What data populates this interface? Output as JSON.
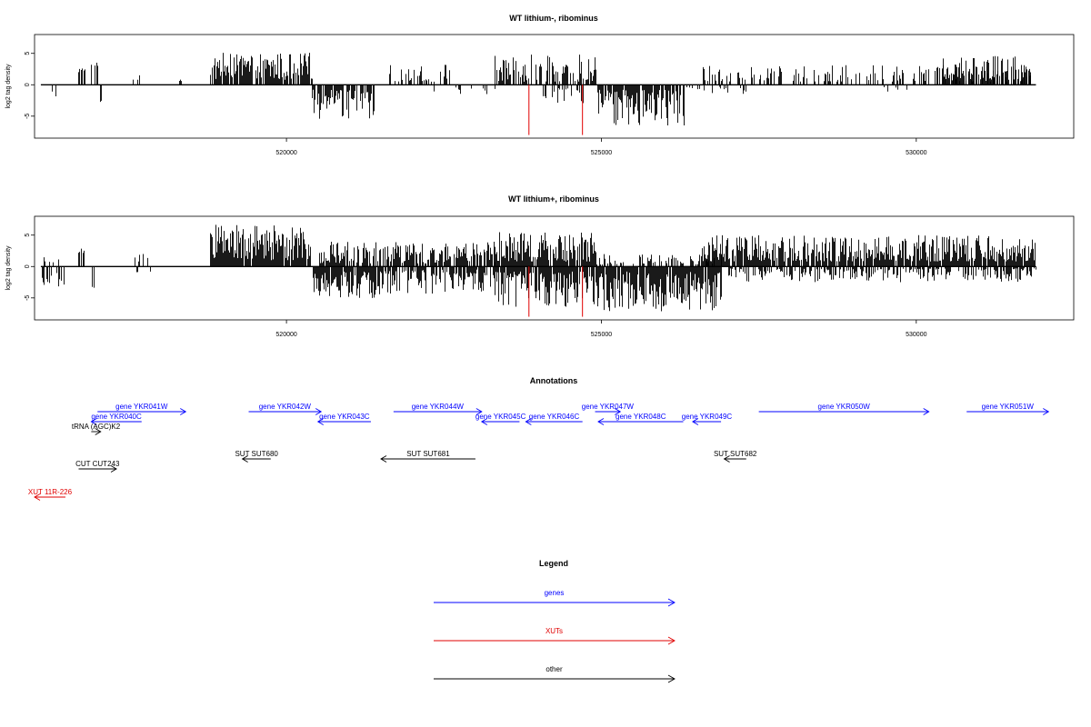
{
  "chart_data": [
    {
      "type": "bar",
      "title": "WT lithium-, ribominus",
      "ylabel": "log2 tag density",
      "ylim": [
        -8.5,
        8
      ],
      "xlim": [
        516000,
        532500
      ],
      "y_ticks": [
        -5,
        0,
        5
      ],
      "x_ticks": [
        520000,
        525000,
        530000
      ],
      "x_tick_labels": [
        "520000",
        "525000",
        "530000"
      ],
      "y_tick_labels": [
        "-5",
        "0",
        "5"
      ],
      "highlight_lines": [
        {
          "x": 523850,
          "y": -8.0,
          "color": "#e00000"
        },
        {
          "x": 524700,
          "y": -8.0,
          "color": "#e00000"
        }
      ],
      "series_segments": [
        {
          "range": [
            516100,
            516350
          ],
          "sign": -1,
          "min": 0.6,
          "max": 2.2,
          "density": 0.12
        },
        {
          "range": [
            516700,
            516800
          ],
          "sign": 1,
          "min": 2.0,
          "max": 2.8,
          "density": 0.5
        },
        {
          "range": [
            516900,
            517000
          ],
          "sign": 1,
          "min": 3.0,
          "max": 4.0,
          "density": 0.5
        },
        {
          "range": [
            517000,
            517050
          ],
          "sign": -1,
          "min": 2.5,
          "max": 3.2,
          "density": 0.5
        },
        {
          "range": [
            517500,
            517700
          ],
          "sign": 1,
          "min": 0.8,
          "max": 1.8,
          "density": 0.2
        },
        {
          "range": [
            518300,
            518350
          ],
          "sign": 1,
          "min": 0.6,
          "max": 1.0,
          "density": 0.5
        },
        {
          "range": [
            518780,
            520410
          ],
          "sign": 1,
          "min": 0.8,
          "max": 5.2,
          "density": 0.85
        },
        {
          "range": [
            520410,
            521380
          ],
          "sign": -1,
          "min": 0.8,
          "max": 5.5,
          "density": 0.85
        },
        {
          "range": [
            521600,
            522600
          ],
          "sign": 1,
          "min": 0.4,
          "max": 3.2,
          "density": 0.45
        },
        {
          "range": [
            522300,
            523300
          ],
          "sign": -1,
          "min": 0.3,
          "max": 1.6,
          "density": 0.15
        },
        {
          "range": [
            523300,
            524900
          ],
          "sign": 1,
          "min": 0.5,
          "max": 4.8,
          "density": 0.65
        },
        {
          "range": [
            524000,
            524700
          ],
          "sign": -1,
          "min": 0.5,
          "max": 3.0,
          "density": 0.4
        },
        {
          "range": [
            524900,
            526300
          ],
          "sign": -1,
          "min": 0.8,
          "max": 6.5,
          "density": 0.85
        },
        {
          "range": [
            526300,
            527300
          ],
          "sign": -1,
          "min": 0.3,
          "max": 1.6,
          "density": 0.2
        },
        {
          "range": [
            526500,
            531800
          ],
          "sign": 1,
          "min": 0.5,
          "max": 3.2,
          "density": 0.35
        },
        {
          "range": [
            529400,
            530100
          ],
          "sign": -1,
          "min": 0.3,
          "max": 1.2,
          "density": 0.1
        },
        {
          "range": [
            530400,
            531800
          ],
          "sign": 1,
          "min": 0.8,
          "max": 4.8,
          "density": 0.75
        }
      ]
    },
    {
      "type": "bar",
      "title": "WT lithium+, ribominus",
      "ylabel": "log2 tag density",
      "ylim": [
        -8.5,
        8
      ],
      "xlim": [
        516000,
        532500
      ],
      "y_ticks": [
        -5,
        0,
        5
      ],
      "x_ticks": [
        520000,
        525000,
        530000
      ],
      "x_tick_labels": [
        "520000",
        "525000",
        "530000"
      ],
      "y_tick_labels": [
        "-5",
        "0",
        "5"
      ],
      "highlight_lines": [
        {
          "x": 523850,
          "y": -8.0,
          "color": "#e00000"
        },
        {
          "x": 524700,
          "y": -8.0,
          "color": "#e00000"
        }
      ],
      "series_segments": [
        {
          "range": [
            516100,
            516500
          ],
          "sign": -1,
          "min": 0.8,
          "max": 3.2,
          "density": 0.6
        },
        {
          "range": [
            516100,
            516400
          ],
          "sign": 1,
          "min": 0.5,
          "max": 1.5,
          "density": 0.3
        },
        {
          "range": [
            516700,
            516800
          ],
          "sign": 1,
          "min": 2.0,
          "max": 3.0,
          "density": 0.5
        },
        {
          "range": [
            516900,
            517000
          ],
          "sign": -1,
          "min": 2.5,
          "max": 3.5,
          "density": 0.5
        },
        {
          "range": [
            517500,
            517800
          ],
          "sign": 1,
          "min": 0.8,
          "max": 2.0,
          "density": 0.2
        },
        {
          "range": [
            517600,
            517900
          ],
          "sign": -1,
          "min": 0.5,
          "max": 1.2,
          "density": 0.2
        },
        {
          "range": [
            518780,
            520410
          ],
          "sign": 1,
          "min": 1.0,
          "max": 6.8,
          "density": 0.95
        },
        {
          "range": [
            520410,
            521500
          ],
          "sign": -1,
          "min": 0.8,
          "max": 5.0,
          "density": 0.9
        },
        {
          "range": [
            520500,
            523300
          ],
          "sign": 1,
          "min": 0.5,
          "max": 4.0,
          "density": 0.75
        },
        {
          "range": [
            521500,
            523300
          ],
          "sign": -1,
          "min": 0.5,
          "max": 4.5,
          "density": 0.75
        },
        {
          "range": [
            523300,
            524900
          ],
          "sign": 1,
          "min": 0.8,
          "max": 5.5,
          "density": 0.9
        },
        {
          "range": [
            523300,
            524900
          ],
          "sign": -1,
          "min": 0.8,
          "max": 6.5,
          "density": 0.9
        },
        {
          "range": [
            524900,
            526900
          ],
          "sign": -1,
          "min": 0.8,
          "max": 7.2,
          "density": 0.9
        },
        {
          "range": [
            524900,
            526900
          ],
          "sign": 1,
          "min": 0.3,
          "max": 2.0,
          "density": 0.4
        },
        {
          "range": [
            526600,
            531900
          ],
          "sign": 1,
          "min": 0.8,
          "max": 5.0,
          "density": 0.9
        },
        {
          "range": [
            527000,
            531900
          ],
          "sign": -1,
          "min": 0.3,
          "max": 2.5,
          "density": 0.55
        }
      ]
    }
  ],
  "annotations": {
    "title": "Annotations",
    "xlim": [
      516000,
      532500
    ],
    "features": [
      {
        "label": "gene YKR041W",
        "color": "#0000ff",
        "start": 517000,
        "end": 518400,
        "strand": "+",
        "row": 0
      },
      {
        "label": "gene YKR040C",
        "color": "#0000ff",
        "start": 516900,
        "end": 517700,
        "strand": "-",
        "row": 1
      },
      {
        "label": "tRNA (AGC)K2",
        "color": "#000000",
        "start": 516900,
        "end": 517050,
        "strand": "+",
        "row": 2
      },
      {
        "label": "gene YKR042W",
        "color": "#0000ff",
        "start": 519400,
        "end": 520550,
        "strand": "+",
        "row": 0
      },
      {
        "label": "gene YKR043C",
        "color": "#0000ff",
        "start": 520500,
        "end": 521340,
        "strand": "-",
        "row": 1
      },
      {
        "label": "gene YKR044W",
        "color": "#0000ff",
        "start": 521700,
        "end": 523100,
        "strand": "+",
        "row": 0
      },
      {
        "label": "gene YKR045C",
        "color": "#0000ff",
        "start": 523100,
        "end": 523700,
        "strand": "-",
        "row": 1
      },
      {
        "label": "gene YKR046C",
        "color": "#0000ff",
        "start": 523800,
        "end": 524700,
        "strand": "-",
        "row": 1
      },
      {
        "label": "gene YKR047W",
        "color": "#0000ff",
        "start": 524900,
        "end": 525300,
        "strand": "+",
        "row": 0
      },
      {
        "label": "gene YKR048C",
        "color": "#0000ff",
        "start": 524950,
        "end": 526300,
        "strand": "-",
        "row": 1
      },
      {
        "label": "gene YKR049C",
        "color": "#0000ff",
        "start": 526450,
        "end": 526900,
        "strand": "-",
        "row": 1
      },
      {
        "label": "gene YKR050W",
        "color": "#0000ff",
        "start": 527500,
        "end": 530200,
        "strand": "+",
        "row": 0
      },
      {
        "label": "gene YKR051W",
        "color": "#0000ff",
        "start": 530800,
        "end": 532100,
        "strand": "+",
        "row": 0
      },
      {
        "label": "SUT SUT680",
        "color": "#000000",
        "start": 519300,
        "end": 519750,
        "strand": "-",
        "row": 3
      },
      {
        "label": "SUT SUT681",
        "color": "#000000",
        "start": 521500,
        "end": 523000,
        "strand": "-",
        "row": 3
      },
      {
        "label": "SUT SUT682",
        "color": "#000000",
        "start": 526950,
        "end": 527300,
        "strand": "-",
        "row": 3
      },
      {
        "label": "CUT CUT243",
        "color": "#000000",
        "start": 516700,
        "end": 517300,
        "strand": "+",
        "row": 4
      },
      {
        "label": "XUT 11R-226",
        "color": "#e00000",
        "start": 516000,
        "end": 516490,
        "strand": "-",
        "row": 5
      }
    ]
  },
  "legend": {
    "title": "Legend",
    "items": [
      {
        "label": "genes",
        "color": "#0000ff"
      },
      {
        "label": "XUTs",
        "color": "#e00000"
      },
      {
        "label": "other",
        "color": "#000000"
      }
    ]
  }
}
